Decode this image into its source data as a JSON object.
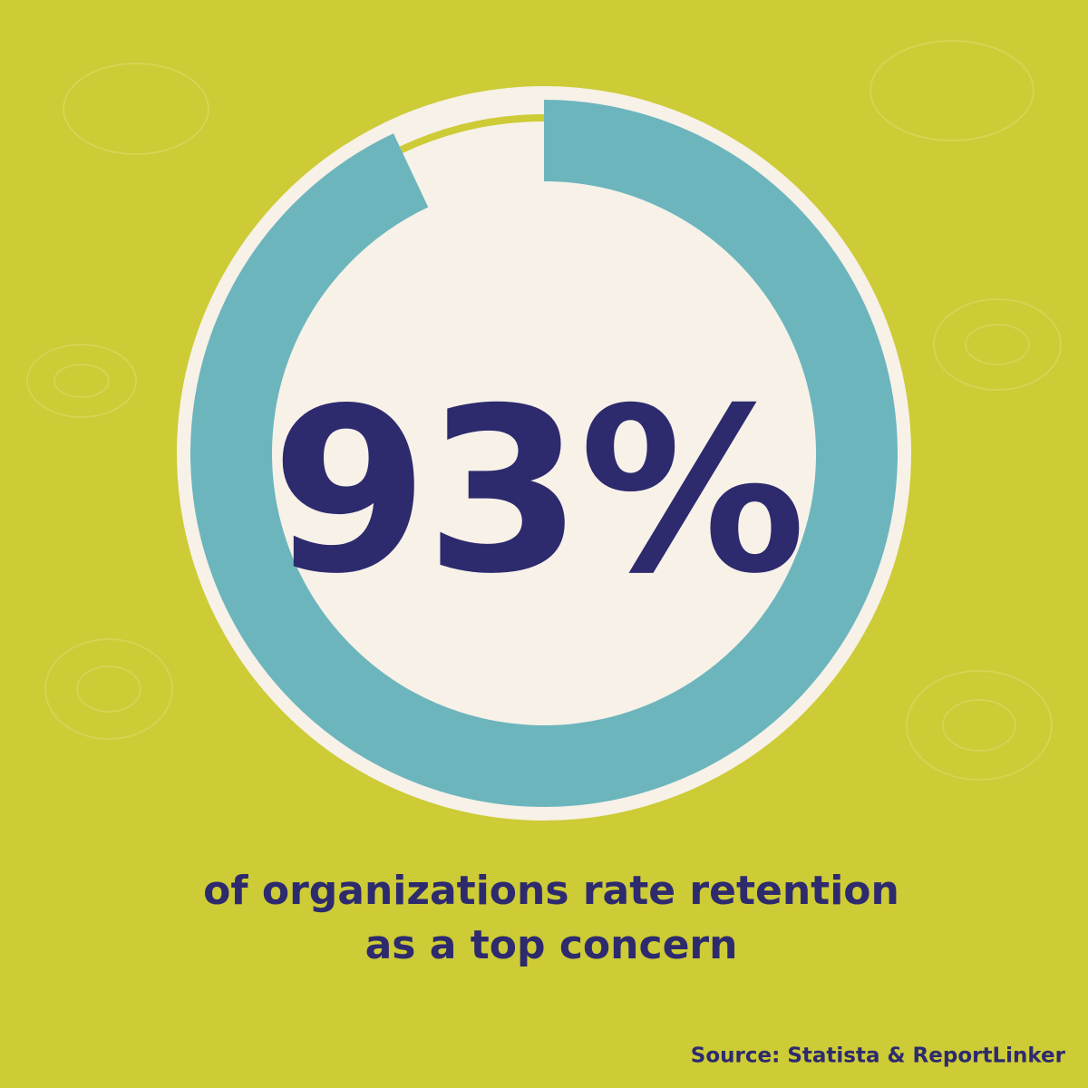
{
  "chart_data": {
    "type": "donut",
    "values": [
      93
    ],
    "value_labels": [
      "93%"
    ],
    "color": "#6cb5bd",
    "caption": [
      "of organizations rate retention",
      "as a top concern"
    ],
    "source": "Source: Statista & ReportLinker"
  }
}
